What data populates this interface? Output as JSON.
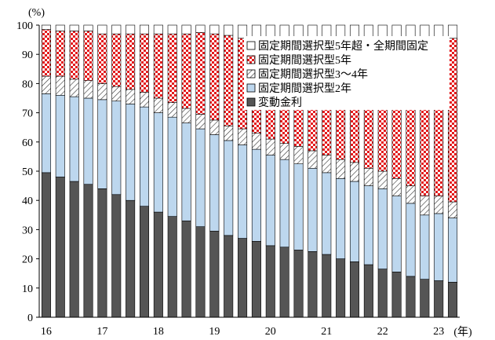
{
  "chart_data": {
    "type": "bar",
    "stacked": true,
    "unit": "(%)",
    "x_unit": "(年)",
    "ylim": [
      0,
      100
    ],
    "yticks": [
      0,
      10,
      20,
      30,
      40,
      50,
      60,
      70,
      80,
      90,
      100
    ],
    "x_tick_labels": [
      "16",
      "17",
      "18",
      "19",
      "20",
      "21",
      "22",
      "23"
    ],
    "x_tick_index": [
      0,
      4,
      8,
      12,
      16,
      20,
      24,
      28
    ],
    "grid": false,
    "legend_position": "top-right",
    "categories": [
      "16Q1",
      "16Q2",
      "16Q3",
      "16Q4",
      "17Q1",
      "17Q2",
      "17Q3",
      "17Q4",
      "18Q1",
      "18Q2",
      "18Q3",
      "18Q4",
      "19Q1",
      "19Q2",
      "19Q3",
      "19Q4",
      "20Q1",
      "20Q2",
      "20Q3",
      "20Q4",
      "21Q1",
      "21Q2",
      "21Q3",
      "21Q4",
      "22Q1",
      "22Q2",
      "22Q3",
      "22Q4",
      "23Q1",
      "23Q2"
    ],
    "series": [
      {
        "name": "変動金利",
        "color": "#555555",
        "pattern": "solid",
        "values": [
          49.5,
          48,
          46.5,
          45.5,
          44,
          42,
          40,
          38,
          36,
          34.5,
          33,
          31,
          29.5,
          28,
          27,
          26,
          24.5,
          24,
          23,
          22.5,
          21.5,
          20,
          19,
          18,
          16.5,
          15.5,
          14,
          13,
          12.5,
          12
        ]
      },
      {
        "name": "固定期間選択型2年",
        "color": "#bdd7ee",
        "pattern": "solid",
        "values": [
          27,
          28,
          29,
          29.5,
          30.5,
          32,
          33,
          34,
          34,
          34,
          33.5,
          33.5,
          33,
          32.5,
          32,
          31.5,
          31,
          30,
          29.5,
          28.5,
          28,
          27.5,
          27.5,
          27,
          27.5,
          26,
          25,
          22,
          23,
          22
        ]
      },
      {
        "name": "固定期間選択型3～4年",
        "color": "#ffffff",
        "pattern": "hatch",
        "values": [
          6,
          6.5,
          6,
          6,
          5.5,
          5,
          5,
          5,
          5,
          5,
          5,
          5,
          5,
          5,
          5.5,
          5.5,
          5.5,
          5.5,
          6,
          6,
          6,
          6.5,
          6.5,
          6,
          6,
          6,
          6,
          6.5,
          6,
          5.5
        ]
      },
      {
        "name": "固定期間選択型5年",
        "color": "#e31a1c",
        "pattern": "checker",
        "values": [
          16,
          15.5,
          16.5,
          17,
          17,
          18,
          19,
          20,
          22,
          23.5,
          25.5,
          28,
          29.5,
          31,
          31,
          32,
          33,
          34,
          35,
          36,
          37,
          38,
          39,
          41,
          42,
          44.5,
          46,
          50.5,
          51,
          56
        ]
      },
      {
        "name": "固定期間選択型5年超・全期間固定",
        "color": "#ffffff",
        "pattern": "solid",
        "values": [
          1.5,
          2,
          2,
          2,
          3,
          3,
          3,
          3,
          3,
          3,
          3,
          2.5,
          3,
          3.5,
          4.5,
          5,
          6,
          6.5,
          6.5,
          7,
          7.5,
          8,
          8,
          8,
          8,
          8,
          9,
          8,
          7.5,
          4.5
        ]
      }
    ],
    "legend_order": [
      4,
      3,
      2,
      1,
      0
    ]
  }
}
